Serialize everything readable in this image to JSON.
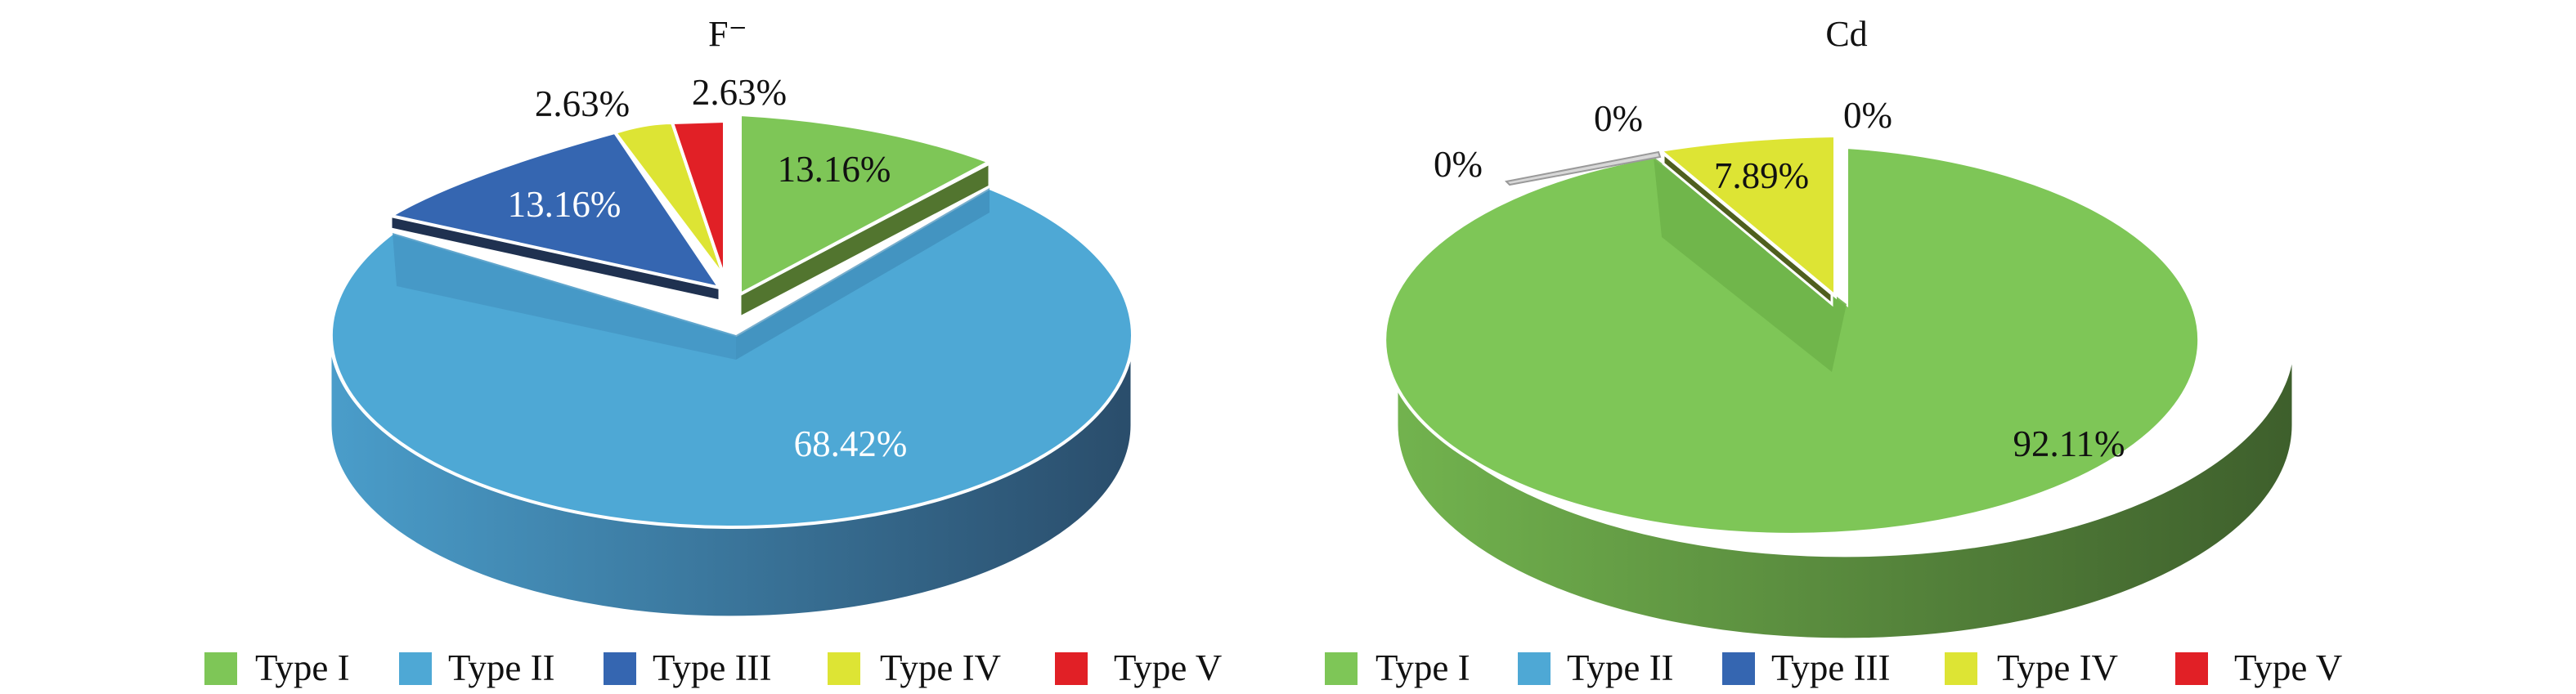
{
  "chart_data": [
    {
      "type": "pie",
      "title": "F⁻",
      "categories": [
        "Type I",
        "Type II",
        "Type III",
        "Type IV",
        "Type V"
      ],
      "values": [
        13.16,
        68.42,
        13.16,
        2.63,
        2.63
      ],
      "labels": [
        "13.16%",
        "68.42%",
        "13.16%",
        "2.63%",
        "2.63%"
      ],
      "legend": "bottom",
      "three_d": true
    },
    {
      "type": "pie",
      "title": "Cd",
      "categories": [
        "Type I",
        "Type II",
        "Type III",
        "Type IV",
        "Type V"
      ],
      "values": [
        92.11,
        0,
        0,
        7.89,
        0
      ],
      "labels": [
        "92.11%",
        "0%",
        "0%",
        "7.89%",
        "0%"
      ],
      "legend": "bottom",
      "three_d": true
    }
  ],
  "colors": {
    "type_i": "#7ec657",
    "type_ii": "#4ea8d5",
    "type_iii": "#3566b1",
    "type_iv": "#dde434",
    "type_v": "#e12026"
  }
}
